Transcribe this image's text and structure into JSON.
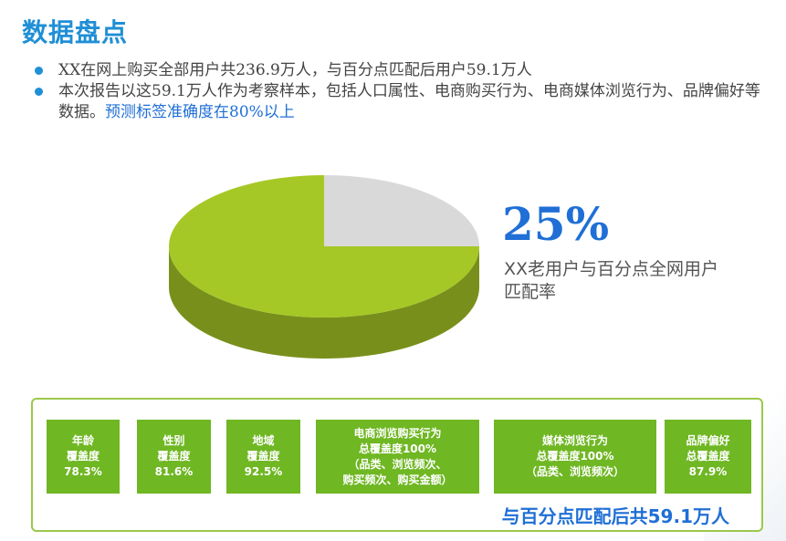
{
  "header": {
    "title": "数据盘点"
  },
  "bullets": {
    "line1": "XX在网上购买全部用户共236.9万人，与百分点匹配后用户59.1万人",
    "line2": "本次报告以这59.1万人作为考察样本，包括人口属性、电商购买行为、电商媒体浏览行为、品牌偏好等数据。",
    "line2_highlight": "预测标签准确度在80%以上"
  },
  "chart_data": {
    "type": "pie",
    "style": "3d",
    "slices": [
      {
        "label": "XX老用户与百分点全网用户匹配率",
        "value": 25,
        "color": "#d9d9d9"
      },
      {
        "value": 75,
        "color": "#a6c826"
      }
    ],
    "annotation_value": "25%",
    "annotation_label": "XX老用户与百分点全网用户匹配率"
  },
  "coverage": {
    "cards": [
      {
        "text": "年龄\n覆盖度\n78.3%",
        "value": 78.3
      },
      {
        "text": "性别\n覆盖度\n81.6%",
        "value": 81.6
      },
      {
        "text": "地域\n覆盖度\n92.5%",
        "value": 92.5
      },
      {
        "text": "电商浏览购买行为\n总覆盖度100%\n（品类、浏览频次、\n购买频次、购买金额）",
        "value": 100
      },
      {
        "text": "媒体浏览行为\n总覆盖度100%\n（品类、浏览频次）",
        "value": 100
      },
      {
        "text": "品牌偏好\n总覆盖度\n87.9%",
        "value": 87.9
      }
    ],
    "summary": "与百分点匹配后共59.1万人"
  },
  "colors": {
    "title_blue": "#1f8fd6",
    "highlight_blue": "#1f6fd6",
    "card_green": "#6fb723",
    "pie_green": "#a6c826",
    "pie_gray": "#d9d9d9"
  }
}
